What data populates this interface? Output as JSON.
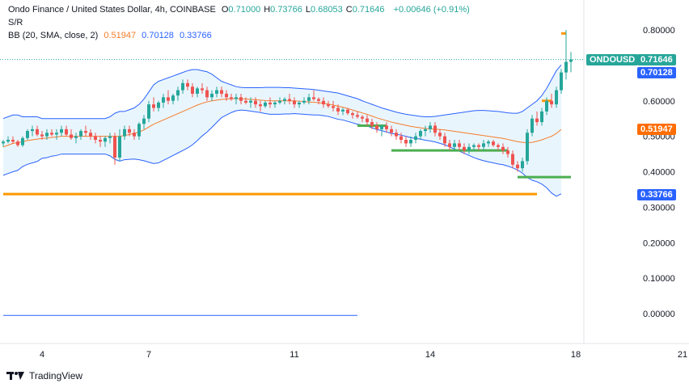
{
  "header": {
    "title": "Ondo Finance / United States Dollar, 4h, COINBASE",
    "ohlc": [
      {
        "k": "O",
        "v": "0.71000"
      },
      {
        "k": "H",
        "v": "0.73766"
      },
      {
        "k": "L",
        "v": "0.68053"
      },
      {
        "k": "C",
        "v": "0.71646"
      }
    ],
    "change": "+0.00646 (+0.91%)",
    "sr_label": "S/R",
    "bb_label": "BB (20, SMA, close, 2)",
    "bb_basis": "0.51947",
    "bb_upper": "0.70128",
    "bb_lower": "0.33766"
  },
  "price_tags": {
    "symbol": "ONDOUSD",
    "last": "0.71646",
    "upper": "0.70128",
    "basis": "0.51947",
    "lower": "0.33766"
  },
  "colors": {
    "up": "#26a69a",
    "down": "#ef5350",
    "basis": "#f57c2a",
    "band": "#2962ff",
    "band_fill": "#e3f2fd",
    "support_orange": "#ff9800",
    "support_green": "#4caf50"
  },
  "footer": {
    "brand": "TradingView"
  },
  "chart_data": {
    "type": "candlestick",
    "ylim": [
      -0.03,
      0.82
    ],
    "y_ticks": [
      "0.80000",
      "0.60000",
      "0.50000",
      "0.40000",
      "0.30000",
      "0.20000",
      "0.10000",
      "0.00000"
    ],
    "y_tick_values": [
      0.8,
      0.6,
      0.5,
      0.4,
      0.3,
      0.2,
      0.1,
      0.0
    ],
    "x_ticks": [
      "4",
      "7",
      "11",
      "14",
      "18",
      "21"
    ],
    "x_tick_index": [
      8,
      30,
      60,
      88,
      118,
      140
    ],
    "last_price": 0.71646,
    "candles": [
      [
        0.48,
        0.49,
        0.47,
        0.485
      ],
      [
        0.485,
        0.5,
        0.48,
        0.49
      ],
      [
        0.49,
        0.5,
        0.48,
        0.485
      ],
      [
        0.485,
        0.49,
        0.47,
        0.475
      ],
      [
        0.475,
        0.5,
        0.47,
        0.495
      ],
      [
        0.495,
        0.52,
        0.49,
        0.515
      ],
      [
        0.515,
        0.53,
        0.5,
        0.52
      ],
      [
        0.52,
        0.53,
        0.5,
        0.505
      ],
      [
        0.505,
        0.515,
        0.49,
        0.5
      ],
      [
        0.5,
        0.52,
        0.49,
        0.51
      ],
      [
        0.51,
        0.52,
        0.5,
        0.505
      ],
      [
        0.505,
        0.52,
        0.49,
        0.51
      ],
      [
        0.51,
        0.53,
        0.5,
        0.52
      ],
      [
        0.52,
        0.53,
        0.5,
        0.505
      ],
      [
        0.505,
        0.52,
        0.49,
        0.495
      ],
      [
        0.495,
        0.51,
        0.48,
        0.5
      ],
      [
        0.5,
        0.52,
        0.49,
        0.515
      ],
      [
        0.515,
        0.53,
        0.5,
        0.51
      ],
      [
        0.51,
        0.52,
        0.49,
        0.5
      ],
      [
        0.5,
        0.51,
        0.48,
        0.49
      ],
      [
        0.49,
        0.5,
        0.47,
        0.485
      ],
      [
        0.485,
        0.5,
        0.47,
        0.495
      ],
      [
        0.495,
        0.51,
        0.48,
        0.5
      ],
      [
        0.5,
        0.51,
        0.42,
        0.44
      ],
      [
        0.44,
        0.52,
        0.43,
        0.5
      ],
      [
        0.5,
        0.53,
        0.49,
        0.52
      ],
      [
        0.52,
        0.53,
        0.5,
        0.51
      ],
      [
        0.51,
        0.52,
        0.49,
        0.5
      ],
      [
        0.5,
        0.54,
        0.49,
        0.535
      ],
      [
        0.535,
        0.56,
        0.52,
        0.55
      ],
      [
        0.55,
        0.6,
        0.54,
        0.59
      ],
      [
        0.59,
        0.61,
        0.57,
        0.58
      ],
      [
        0.58,
        0.6,
        0.57,
        0.595
      ],
      [
        0.595,
        0.62,
        0.58,
        0.61
      ],
      [
        0.61,
        0.63,
        0.59,
        0.6
      ],
      [
        0.6,
        0.62,
        0.59,
        0.615
      ],
      [
        0.615,
        0.64,
        0.6,
        0.63
      ],
      [
        0.63,
        0.66,
        0.62,
        0.65
      ],
      [
        0.65,
        0.66,
        0.63,
        0.64
      ],
      [
        0.64,
        0.65,
        0.61,
        0.62
      ],
      [
        0.62,
        0.64,
        0.61,
        0.635
      ],
      [
        0.635,
        0.65,
        0.62,
        0.63
      ],
      [
        0.63,
        0.64,
        0.6,
        0.61
      ],
      [
        0.61,
        0.63,
        0.6,
        0.62
      ],
      [
        0.62,
        0.64,
        0.61,
        0.63
      ],
      [
        0.63,
        0.64,
        0.61,
        0.62
      ],
      [
        0.62,
        0.63,
        0.6,
        0.61
      ],
      [
        0.61,
        0.62,
        0.6,
        0.605
      ],
      [
        0.605,
        0.62,
        0.59,
        0.61
      ],
      [
        0.61,
        0.62,
        0.59,
        0.6
      ],
      [
        0.6,
        0.61,
        0.59,
        0.595
      ],
      [
        0.595,
        0.61,
        0.58,
        0.6
      ],
      [
        0.6,
        0.61,
        0.58,
        0.59
      ],
      [
        0.59,
        0.6,
        0.57,
        0.585
      ],
      [
        0.585,
        0.6,
        0.58,
        0.595
      ],
      [
        0.595,
        0.61,
        0.58,
        0.59
      ],
      [
        0.59,
        0.6,
        0.58,
        0.595
      ],
      [
        0.595,
        0.61,
        0.59,
        0.6
      ],
      [
        0.6,
        0.61,
        0.59,
        0.605
      ],
      [
        0.605,
        0.62,
        0.59,
        0.6
      ],
      [
        0.6,
        0.61,
        0.58,
        0.59
      ],
      [
        0.59,
        0.6,
        0.58,
        0.595
      ],
      [
        0.595,
        0.61,
        0.59,
        0.6
      ],
      [
        0.6,
        0.62,
        0.59,
        0.61
      ],
      [
        0.61,
        0.63,
        0.6,
        0.605
      ],
      [
        0.605,
        0.61,
        0.59,
        0.6
      ],
      [
        0.6,
        0.61,
        0.58,
        0.59
      ],
      [
        0.59,
        0.6,
        0.58,
        0.585
      ],
      [
        0.585,
        0.6,
        0.57,
        0.58
      ],
      [
        0.58,
        0.59,
        0.56,
        0.57
      ],
      [
        0.57,
        0.58,
        0.56,
        0.575
      ],
      [
        0.575,
        0.58,
        0.56,
        0.565
      ],
      [
        0.565,
        0.57,
        0.55,
        0.56
      ],
      [
        0.56,
        0.57,
        0.55,
        0.555
      ],
      [
        0.555,
        0.56,
        0.54,
        0.55
      ],
      [
        0.55,
        0.56,
        0.53,
        0.54
      ],
      [
        0.54,
        0.55,
        0.52,
        0.53
      ],
      [
        0.53,
        0.54,
        0.51,
        0.52
      ],
      [
        0.52,
        0.53,
        0.5,
        0.53
      ],
      [
        0.53,
        0.54,
        0.51,
        0.52
      ],
      [
        0.52,
        0.53,
        0.5,
        0.51
      ],
      [
        0.51,
        0.52,
        0.49,
        0.5
      ],
      [
        0.5,
        0.51,
        0.48,
        0.49
      ],
      [
        0.49,
        0.5,
        0.47,
        0.48
      ],
      [
        0.48,
        0.5,
        0.47,
        0.49
      ],
      [
        0.49,
        0.51,
        0.48,
        0.5
      ],
      [
        0.5,
        0.52,
        0.49,
        0.515
      ],
      [
        0.515,
        0.53,
        0.5,
        0.52
      ],
      [
        0.52,
        0.54,
        0.51,
        0.53
      ],
      [
        0.53,
        0.54,
        0.5,
        0.51
      ],
      [
        0.51,
        0.52,
        0.49,
        0.5
      ],
      [
        0.5,
        0.51,
        0.47,
        0.48
      ],
      [
        0.48,
        0.49,
        0.46,
        0.47
      ],
      [
        0.47,
        0.49,
        0.46,
        0.48
      ],
      [
        0.48,
        0.49,
        0.46,
        0.47
      ],
      [
        0.47,
        0.48,
        0.45,
        0.46
      ],
      [
        0.46,
        0.48,
        0.45,
        0.47
      ],
      [
        0.47,
        0.48,
        0.46,
        0.475
      ],
      [
        0.475,
        0.48,
        0.46,
        0.47
      ],
      [
        0.47,
        0.49,
        0.46,
        0.48
      ],
      [
        0.48,
        0.49,
        0.47,
        0.485
      ],
      [
        0.485,
        0.49,
        0.47,
        0.475
      ],
      [
        0.475,
        0.48,
        0.46,
        0.47
      ],
      [
        0.47,
        0.48,
        0.45,
        0.46
      ],
      [
        0.46,
        0.47,
        0.44,
        0.45
      ],
      [
        0.45,
        0.46,
        0.41,
        0.42
      ],
      [
        0.42,
        0.43,
        0.4,
        0.41
      ],
      [
        0.41,
        0.44,
        0.4,
        0.43
      ],
      [
        0.43,
        0.52,
        0.42,
        0.51
      ],
      [
        0.51,
        0.56,
        0.5,
        0.55
      ],
      [
        0.55,
        0.57,
        0.53,
        0.54
      ],
      [
        0.54,
        0.58,
        0.53,
        0.57
      ],
      [
        0.57,
        0.61,
        0.56,
        0.6
      ],
      [
        0.6,
        0.62,
        0.58,
        0.59
      ],
      [
        0.59,
        0.64,
        0.58,
        0.63
      ],
      [
        0.63,
        0.69,
        0.62,
        0.68
      ],
      [
        0.68,
        0.8,
        0.66,
        0.71
      ],
      [
        0.71,
        0.73766,
        0.68053,
        0.71646
      ]
    ],
    "bb_upper": [
      0.55,
      0.555,
      0.56,
      0.56,
      0.555,
      0.555,
      0.555,
      0.555,
      0.55,
      0.55,
      0.55,
      0.55,
      0.55,
      0.55,
      0.55,
      0.55,
      0.55,
      0.55,
      0.55,
      0.55,
      0.55,
      0.55,
      0.555,
      0.565,
      0.57,
      0.57,
      0.575,
      0.58,
      0.59,
      0.605,
      0.625,
      0.645,
      0.655,
      0.66,
      0.665,
      0.67,
      0.675,
      0.68,
      0.685,
      0.688,
      0.688,
      0.685,
      0.682,
      0.675,
      0.665,
      0.655,
      0.65,
      0.645,
      0.64,
      0.638,
      0.637,
      0.637,
      0.637,
      0.637,
      0.638,
      0.638,
      0.638,
      0.638,
      0.637,
      0.637,
      0.636,
      0.635,
      0.634,
      0.633,
      0.632,
      0.63,
      0.628,
      0.626,
      0.624,
      0.622,
      0.618,
      0.614,
      0.61,
      0.606,
      0.6,
      0.595,
      0.59,
      0.585,
      0.58,
      0.576,
      0.572,
      0.568,
      0.565,
      0.562,
      0.56,
      0.558,
      0.556,
      0.555,
      0.555,
      0.556,
      0.558,
      0.56,
      0.562,
      0.564,
      0.566,
      0.568,
      0.57,
      0.572,
      0.573,
      0.573,
      0.572,
      0.571,
      0.57,
      0.568,
      0.566,
      0.565,
      0.565,
      0.57,
      0.58,
      0.59,
      0.6,
      0.615,
      0.635,
      0.66,
      0.685,
      0.70128
    ],
    "bb_basis": [
      0.47,
      0.475,
      0.48,
      0.482,
      0.485,
      0.488,
      0.49,
      0.492,
      0.494,
      0.495,
      0.497,
      0.498,
      0.5,
      0.5,
      0.5,
      0.5,
      0.5,
      0.5,
      0.5,
      0.5,
      0.5,
      0.5,
      0.5,
      0.5,
      0.5,
      0.502,
      0.505,
      0.508,
      0.512,
      0.518,
      0.526,
      0.534,
      0.54,
      0.546,
      0.552,
      0.558,
      0.564,
      0.57,
      0.576,
      0.582,
      0.588,
      0.593,
      0.597,
      0.6,
      0.602,
      0.604,
      0.605,
      0.606,
      0.606,
      0.606,
      0.605,
      0.604,
      0.603,
      0.602,
      0.601,
      0.6,
      0.6,
      0.6,
      0.6,
      0.6,
      0.6,
      0.599,
      0.598,
      0.597,
      0.596,
      0.595,
      0.593,
      0.591,
      0.588,
      0.585,
      0.582,
      0.578,
      0.574,
      0.57,
      0.566,
      0.562,
      0.557,
      0.552,
      0.548,
      0.544,
      0.54,
      0.537,
      0.534,
      0.531,
      0.528,
      0.526,
      0.524,
      0.522,
      0.521,
      0.52,
      0.519,
      0.518,
      0.516,
      0.514,
      0.512,
      0.51,
      0.508,
      0.506,
      0.504,
      0.502,
      0.5,
      0.498,
      0.496,
      0.494,
      0.491,
      0.488,
      0.485,
      0.483,
      0.482,
      0.483,
      0.486,
      0.49,
      0.495,
      0.5,
      0.508,
      0.51947
    ],
    "bb_lower": [
      0.39,
      0.395,
      0.4,
      0.404,
      0.415,
      0.421,
      0.425,
      0.429,
      0.438,
      0.44,
      0.444,
      0.446,
      0.45,
      0.45,
      0.45,
      0.45,
      0.45,
      0.45,
      0.45,
      0.45,
      0.45,
      0.45,
      0.445,
      0.435,
      0.43,
      0.434,
      0.435,
      0.436,
      0.434,
      0.431,
      0.427,
      0.423,
      0.425,
      0.432,
      0.439,
      0.446,
      0.453,
      0.46,
      0.467,
      0.476,
      0.488,
      0.501,
      0.512,
      0.525,
      0.539,
      0.553,
      0.56,
      0.567,
      0.572,
      0.574,
      0.573,
      0.571,
      0.569,
      0.567,
      0.564,
      0.562,
      0.562,
      0.562,
      0.563,
      0.563,
      0.564,
      0.563,
      0.562,
      0.561,
      0.56,
      0.56,
      0.558,
      0.556,
      0.552,
      0.548,
      0.546,
      0.542,
      0.538,
      0.534,
      0.532,
      0.529,
      0.524,
      0.519,
      0.516,
      0.512,
      0.508,
      0.506,
      0.503,
      0.5,
      0.496,
      0.494,
      0.492,
      0.489,
      0.487,
      0.484,
      0.48,
      0.476,
      0.47,
      0.464,
      0.458,
      0.452,
      0.446,
      0.44,
      0.435,
      0.431,
      0.428,
      0.425,
      0.422,
      0.42,
      0.416,
      0.411,
      0.405,
      0.396,
      0.384,
      0.376,
      0.372,
      0.365,
      0.355,
      0.34,
      0.331,
      0.33766
    ],
    "levels": [
      {
        "color": "orange",
        "y": 0.337,
        "i0": 0,
        "i1": 110
      },
      {
        "color": "green",
        "y": 0.46,
        "i0": 80,
        "i1": 104
      },
      {
        "color": "green",
        "y": 0.385,
        "i0": 106,
        "i1": 117
      },
      {
        "color": "green",
        "y": 0.53,
        "i0": 73,
        "i1": 79
      },
      {
        "color": "orange",
        "y": 0.6,
        "i0": 111,
        "i1": 113
      },
      {
        "color": "orange",
        "y": 0.79,
        "i0": 115,
        "i1": 116
      }
    ],
    "blue_hline": {
      "y": -0.005,
      "i0": 0,
      "i1": 71
    }
  }
}
